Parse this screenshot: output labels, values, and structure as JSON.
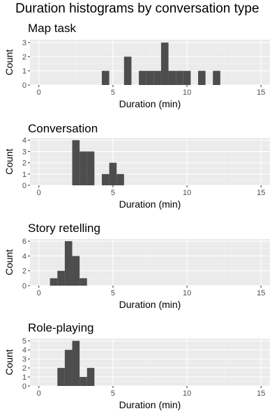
{
  "title": "Duration histograms by conversation type",
  "chart_data": [
    {
      "type": "bar",
      "panel_title": "Map task",
      "xlabel": "Duration (min)",
      "ylabel": "Count",
      "xlim": [
        -0.6,
        15.6
      ],
      "xticks": [
        0,
        5,
        10,
        15
      ],
      "ylim": [
        0,
        3.2
      ],
      "yticks": [
        0,
        1,
        2,
        3
      ],
      "binwidth": 0.5,
      "bins": [
        {
          "x": 4.5,
          "count": 1
        },
        {
          "x": 6.0,
          "count": 2
        },
        {
          "x": 7.0,
          "count": 1
        },
        {
          "x": 7.5,
          "count": 1
        },
        {
          "x": 8.0,
          "count": 1
        },
        {
          "x": 8.5,
          "count": 3
        },
        {
          "x": 9.0,
          "count": 1
        },
        {
          "x": 9.5,
          "count": 1
        },
        {
          "x": 10.0,
          "count": 1
        },
        {
          "x": 11.0,
          "count": 1
        },
        {
          "x": 12.0,
          "count": 1
        }
      ],
      "grid": true
    },
    {
      "type": "bar",
      "panel_title": "Conversation",
      "xlabel": "Duration (min)",
      "ylabel": "Count",
      "xlim": [
        -0.6,
        15.6
      ],
      "xticks": [
        0,
        5,
        10,
        15
      ],
      "ylim": [
        0,
        4.2
      ],
      "yticks": [
        0,
        1,
        2,
        3,
        4
      ],
      "binwidth": 0.5,
      "bins": [
        {
          "x": 2.5,
          "count": 4
        },
        {
          "x": 3.0,
          "count": 3
        },
        {
          "x": 3.5,
          "count": 3
        },
        {
          "x": 4.5,
          "count": 1
        },
        {
          "x": 5.0,
          "count": 2
        },
        {
          "x": 5.5,
          "count": 1
        }
      ],
      "grid": true
    },
    {
      "type": "bar",
      "panel_title": "Story retelling",
      "xlabel": "Duration (min)",
      "ylabel": "Count",
      "xlim": [
        -0.6,
        15.6
      ],
      "xticks": [
        0,
        5,
        10,
        15
      ],
      "ylim": [
        0,
        6.3
      ],
      "yticks": [
        0,
        2,
        4,
        6
      ],
      "binwidth": 0.5,
      "bins": [
        {
          "x": 1.0,
          "count": 1
        },
        {
          "x": 1.5,
          "count": 2
        },
        {
          "x": 2.0,
          "count": 6
        },
        {
          "x": 2.5,
          "count": 4
        },
        {
          "x": 3.0,
          "count": 1
        }
      ],
      "grid": true
    },
    {
      "type": "bar",
      "panel_title": "Role-playing",
      "xlabel": "Duration (min)",
      "ylabel": "Count",
      "xlim": [
        -0.6,
        15.6
      ],
      "xticks": [
        0,
        5,
        10,
        15
      ],
      "ylim": [
        0,
        5.25
      ],
      "yticks": [
        0,
        1,
        2,
        3,
        4,
        5
      ],
      "binwidth": 0.5,
      "bins": [
        {
          "x": 1.5,
          "count": 2
        },
        {
          "x": 2.0,
          "count": 4
        },
        {
          "x": 2.5,
          "count": 5
        },
        {
          "x": 3.0,
          "count": 1
        },
        {
          "x": 3.5,
          "count": 2
        }
      ],
      "grid": true
    }
  ],
  "colors": {
    "panel_background": "#ebebeb",
    "grid_major": "#ffffff",
    "grid_minor": "#f5f5f5",
    "bar_fill": "#4d4d4d",
    "tick_text": "#4d4d4d",
    "tick_mark": "#333333"
  }
}
